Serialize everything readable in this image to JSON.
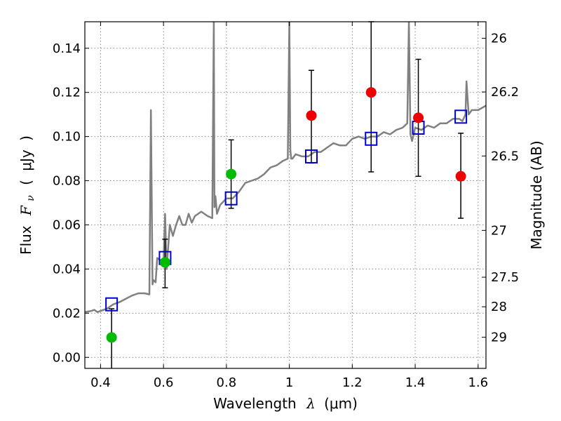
{
  "chart_data": {
    "type": "scatter",
    "xlabel": "Wavelength",
    "xlabel_symbol": "λ",
    "xlabel_unit": "(μm)",
    "ylabel": "Flux",
    "ylabel_symbol": "F",
    "ylabel_subscript": "ν",
    "ylabel_unit_open": "(",
    "ylabel_unit": "μJy",
    "ylabel_unit_close": ")",
    "y2label": "Magnitude (AB)",
    "xlim": [
      0.35,
      1.625
    ],
    "ylim": [
      -0.005,
      0.152
    ],
    "grid": true,
    "x_ticks": [
      0.4,
      0.6,
      0.8,
      1.0,
      1.2,
      1.4,
      1.6
    ],
    "x_tick_labels": [
      "0.4",
      "0.6",
      "0.8",
      "1",
      "1.2",
      "1.4",
      "1.6"
    ],
    "y_ticks": [
      0.0,
      0.02,
      0.04,
      0.06,
      0.08,
      0.1,
      0.12,
      0.14
    ],
    "y_tick_labels": [
      "0.00",
      "0.02",
      "0.04",
      "0.06",
      "0.08",
      "0.10",
      "0.12",
      "0.14"
    ],
    "y2_ticks": [
      {
        "label": "26",
        "flux": 0.1445
      },
      {
        "label": "26.2",
        "flux": 0.1202
      },
      {
        "label": "26.5",
        "flux": 0.0912
      },
      {
        "label": "27",
        "flux": 0.0575
      },
      {
        "label": "27.5",
        "flux": 0.0363
      },
      {
        "label": "28",
        "flux": 0.0229
      },
      {
        "label": "29",
        "flux": 0.0091
      }
    ],
    "colors": {
      "model": "#808080",
      "model_photometry": "#0000cc",
      "detections_optical": "#00bb00",
      "detections_nir": "#ee0000",
      "errorbar": "#000000",
      "grid": "#888888"
    },
    "series": [
      {
        "name": "model_spectrum",
        "style": "line",
        "x": [
          0.35,
          0.37,
          0.38,
          0.39,
          0.4,
          0.41,
          0.42,
          0.44,
          0.46,
          0.48,
          0.5,
          0.52,
          0.54,
          0.555,
          0.56,
          0.565,
          0.568,
          0.575,
          0.58,
          0.6,
          0.605,
          0.61,
          0.62,
          0.63,
          0.64,
          0.65,
          0.66,
          0.67,
          0.68,
          0.69,
          0.7,
          0.72,
          0.74,
          0.755,
          0.76,
          0.762,
          0.765,
          0.77,
          0.78,
          0.8,
          0.82,
          0.84,
          0.86,
          0.88,
          0.9,
          0.92,
          0.94,
          0.96,
          0.98,
          0.995,
          1.0,
          1.003,
          1.006,
          1.01,
          1.02,
          1.04,
          1.06,
          1.08,
          1.1,
          1.12,
          1.14,
          1.16,
          1.18,
          1.2,
          1.22,
          1.24,
          1.26,
          1.28,
          1.3,
          1.32,
          1.34,
          1.36,
          1.375,
          1.38,
          1.385,
          1.39,
          1.4,
          1.42,
          1.44,
          1.46,
          1.48,
          1.5,
          1.52,
          1.54,
          1.55,
          1.56,
          1.563,
          1.57,
          1.58,
          1.6,
          1.625
        ],
        "y": [
          0.0205,
          0.021,
          0.0215,
          0.0205,
          0.021,
          0.0215,
          0.022,
          0.024,
          0.025,
          0.0265,
          0.028,
          0.029,
          0.029,
          0.0285,
          0.112,
          0.033,
          0.035,
          0.034,
          0.045,
          0.043,
          0.065,
          0.04,
          0.06,
          0.055,
          0.06,
          0.064,
          0.06,
          0.06,
          0.065,
          0.061,
          0.064,
          0.066,
          0.064,
          0.063,
          0.152,
          0.068,
          0.073,
          0.065,
          0.069,
          0.072,
          0.072,
          0.075,
          0.079,
          0.08,
          0.081,
          0.083,
          0.086,
          0.087,
          0.089,
          0.09,
          0.152,
          0.094,
          0.09,
          0.09,
          0.092,
          0.091,
          0.091,
          0.093,
          0.093,
          0.095,
          0.097,
          0.096,
          0.096,
          0.099,
          0.1,
          0.099,
          0.1,
          0.1,
          0.102,
          0.101,
          0.103,
          0.104,
          0.106,
          0.152,
          0.101,
          0.098,
          0.104,
          0.103,
          0.105,
          0.104,
          0.106,
          0.106,
          0.108,
          0.108,
          0.107,
          0.11,
          0.125,
          0.11,
          0.112,
          0.112,
          0.114
        ]
      },
      {
        "name": "model_photometry",
        "style": "open-square",
        "x": [
          0.435,
          0.605,
          0.815,
          1.07,
          1.26,
          1.41,
          1.545
        ],
        "y": [
          0.024,
          0.045,
          0.072,
          0.091,
          0.099,
          0.104,
          0.109
        ]
      },
      {
        "name": "observed_optical",
        "style": "filled-circle",
        "x": [
          0.435,
          0.605,
          0.815
        ],
        "y": [
          0.009,
          0.043,
          0.083
        ],
        "yerr_low": [
          0.023,
          0.0115,
          0.0155
        ],
        "yerr_high": [
          0.013,
          0.0105,
          0.0155
        ]
      },
      {
        "name": "observed_nir",
        "style": "filled-circle",
        "x": [
          1.07,
          1.26,
          1.41,
          1.545
        ],
        "y": [
          0.1095,
          0.12,
          0.1085,
          0.082
        ],
        "yerr_low": [
          0.0215,
          0.036,
          0.0265,
          0.019
        ],
        "yerr_high": [
          0.0205,
          0.032,
          0.0265,
          0.0195
        ]
      }
    ]
  }
}
